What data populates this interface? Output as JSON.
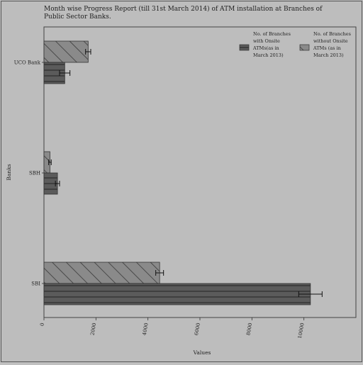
{
  "chart_data": {
    "type": "bar",
    "orientation": "horizontal",
    "title_lines": [
      "Month wise Progress Report (till 31st March 2014) of ATM installation at Branches of",
      "Public Sector Banks."
    ],
    "xlabel": "Values",
    "ylabel": "Banks",
    "categories": [
      "UCO Bank",
      "SBH",
      "SBI"
    ],
    "xlim": [
      0,
      12000
    ],
    "xticks": [
      0,
      2000,
      4000,
      6000,
      8000,
      10000
    ],
    "xtick_labels": [
      "0",
      "2000",
      "4000",
      "6000",
      "8000",
      "10000"
    ],
    "series": [
      {
        "name": "No. of Branches with Onsite ATMs (as in March 2013)",
        "legend_lines": [
          "No. of Branches",
          "with Onsite",
          "ATMs(as in",
          "March 2013)"
        ],
        "values": [
          800,
          520,
          10250
        ],
        "errors": [
          200,
          80,
          450
        ],
        "pattern": "horizontal-lines",
        "color": "#595959"
      },
      {
        "name": "No. of Branches without Onsite ATMs (as in March 2013)",
        "legend_lines": [
          "No. of Branches",
          "without Onsite",
          "ATMs (as in",
          "March 2013)"
        ],
        "values": [
          1700,
          230,
          4450
        ],
        "errors": [
          100,
          50,
          150
        ],
        "pattern": "diagonal-hatch",
        "color": "#888888"
      }
    ],
    "legend_position": "top-right",
    "grid": false
  }
}
